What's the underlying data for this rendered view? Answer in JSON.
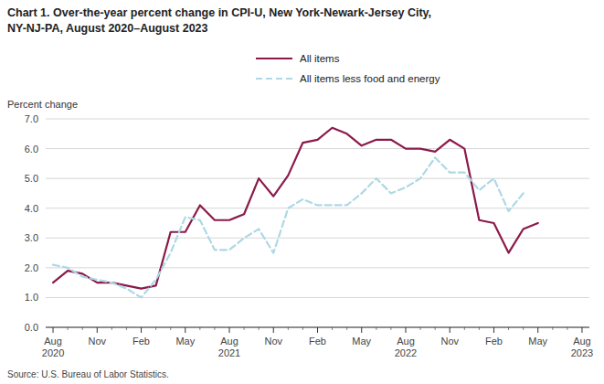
{
  "chart_data": {
    "type": "line",
    "title": "Chart 1. Over-the-year percent change in CPI-U, New York-Newark-Jersey City,",
    "subtitle": "NY-NJ-PA, August 2020–August 2023",
    "y_label": "Percent change",
    "source": "Source: U.S. Bureau of Labor Statistics.",
    "categories": [
      "Aug\n2020",
      null,
      null,
      "Nov",
      null,
      null,
      "Feb",
      null,
      null,
      "May",
      null,
      null,
      "Aug\n2021",
      null,
      null,
      "Nov",
      null,
      null,
      "Feb",
      null,
      null,
      "May",
      null,
      null,
      "Aug\n2022",
      null,
      null,
      "Nov",
      null,
      null,
      "Feb",
      null,
      null,
      "May",
      null,
      null,
      "Aug\n2023"
    ],
    "series": [
      {
        "name": "All items",
        "color": "#8B1A4A",
        "line_style": "solid",
        "values": [
          1.5,
          1.9,
          1.8,
          1.5,
          1.5,
          1.4,
          1.3,
          1.4,
          3.2,
          3.2,
          4.1,
          3.6,
          3.6,
          3.8,
          5.0,
          4.4,
          5.1,
          6.2,
          6.3,
          6.7,
          6.5,
          6.1,
          6.3,
          6.3,
          6.0,
          6.0,
          5.9,
          6.3,
          6.0,
          3.6,
          3.5,
          2.5,
          3.3,
          3.5,
          null,
          null,
          null
        ]
      },
      {
        "name": "All items less food and energy",
        "color": "#ADD8E6",
        "line_style": "dashed",
        "values": [
          2.1,
          2.0,
          1.7,
          1.6,
          1.5,
          1.3,
          1.0,
          1.6,
          2.5,
          3.7,
          3.6,
          2.6,
          2.6,
          3.0,
          3.3,
          2.5,
          4.0,
          4.3,
          4.1,
          4.1,
          4.1,
          4.5,
          5.0,
          4.5,
          4.7,
          5.0,
          5.7,
          5.2,
          5.2,
          4.6,
          5.0,
          3.9,
          4.5,
          null,
          null,
          null,
          null
        ]
      }
    ],
    "ylim": [
      0.0,
      7.0
    ],
    "yticks": [
      {
        "value": 0,
        "label": "0.0"
      },
      {
        "value": 1,
        "label": "1.0"
      },
      {
        "value": 2,
        "label": "2.0"
      },
      {
        "value": 3,
        "label": "3.0"
      },
      {
        "value": 4,
        "label": "4.0"
      },
      {
        "value": 5,
        "label": "5.0"
      },
      {
        "value": 6,
        "label": "6.0"
      },
      {
        "value": 7,
        "label": "7.0"
      }
    ],
    "grid": true,
    "legend": "top"
  }
}
